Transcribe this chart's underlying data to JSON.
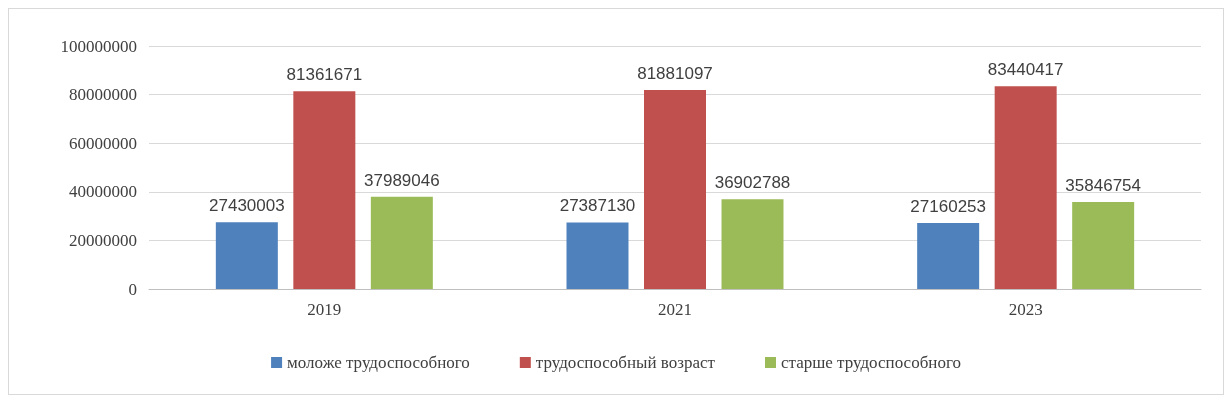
{
  "chart_data": {
    "type": "bar",
    "categories": [
      "2019",
      "2021",
      "2023"
    ],
    "series": [
      {
        "name": "моложе трудоспособного",
        "color": "#4f81bd",
        "values": [
          27430003,
          27387130,
          27160253
        ]
      },
      {
        "name": "трудоспособный возраст",
        "color": "#c0504d",
        "values": [
          81361671,
          81881097,
          83440417
        ]
      },
      {
        "name": "старше трудоспособного",
        "color": "#9bbb59",
        "values": [
          37989046,
          36902788,
          35846754
        ]
      }
    ],
    "ylim": [
      0,
      100000000
    ],
    "yticks": [
      0,
      20000000,
      40000000,
      60000000,
      80000000,
      100000000
    ],
    "grid": "y",
    "legend": "bottom",
    "data_labels": true
  }
}
